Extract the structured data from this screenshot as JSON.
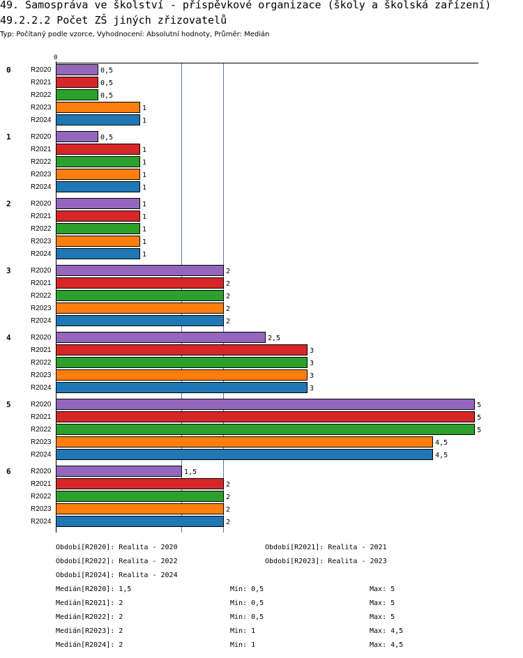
{
  "header": {
    "title": "49. Samospráva ve školství - příspěvkové organizace (školy a školská zařízení)",
    "subtitle": "49.2.2.2 Počet ZŠ jiných zřizovatelů",
    "meta": "Typ: Počítaný podle vzorce, Vyhodnocení: Absolutní hodnoty, Průměr: Medián"
  },
  "chart_data": {
    "type": "bar",
    "orientation": "horizontal",
    "axis_tick_label": "0",
    "xlim": [
      0,
      5
    ],
    "reference_lines": [
      1.5,
      2
    ],
    "categories": [
      "0",
      "1",
      "2",
      "3",
      "4",
      "5",
      "6"
    ],
    "series": [
      {
        "name": "R2020",
        "color": "#9467bd",
        "values": [
          0.5,
          0.5,
          1,
          2,
          2.5,
          5,
          1.5
        ],
        "labels": [
          "0,5",
          "0,5",
          "1",
          "2",
          "2,5",
          "5",
          "1,5"
        ]
      },
      {
        "name": "R2021",
        "color": "#d62728",
        "values": [
          0.5,
          1,
          1,
          2,
          3,
          5,
          2
        ],
        "labels": [
          "0,5",
          "1",
          "1",
          "2",
          "3",
          "5",
          "2"
        ]
      },
      {
        "name": "R2022",
        "color": "#2ca02c",
        "values": [
          0.5,
          1,
          1,
          2,
          3,
          5,
          2
        ],
        "labels": [
          "0,5",
          "1",
          "1",
          "2",
          "3",
          "5",
          "2"
        ]
      },
      {
        "name": "R2023",
        "color": "#ff7f0e",
        "values": [
          1,
          1,
          1,
          2,
          3,
          4.5,
          2
        ],
        "labels": [
          "1",
          "1",
          "1",
          "2",
          "3",
          "4,5",
          "2"
        ]
      },
      {
        "name": "R2024",
        "color": "#1f77b4",
        "values": [
          1,
          1,
          1,
          2,
          3,
          4.5,
          2
        ],
        "labels": [
          "1",
          "1",
          "1",
          "2",
          "3",
          "4,5",
          "2"
        ]
      }
    ]
  },
  "legend": {
    "periods": [
      "Období[R2020]: Realita - 2020",
      "Období[R2021]: Realita - 2021",
      "Období[R2022]: Realita - 2022",
      "Období[R2023]: Realita - 2023",
      "Období[R2024]: Realita - 2024"
    ],
    "stats": [
      {
        "median": "Medián[R2020]: 1,5",
        "min": "Min: 0,5",
        "max": "Max: 5"
      },
      {
        "median": "Medián[R2021]: 2",
        "min": "Min: 0,5",
        "max": "Max: 5"
      },
      {
        "median": "Medián[R2022]: 2",
        "min": "Min: 0,5",
        "max": "Max: 5"
      },
      {
        "median": "Medián[R2023]: 2",
        "min": "Min: 1",
        "max": "Max: 4,5"
      },
      {
        "median": "Medián[R2024]: 2",
        "min": "Min: 1",
        "max": "Max: 4,5"
      }
    ]
  }
}
